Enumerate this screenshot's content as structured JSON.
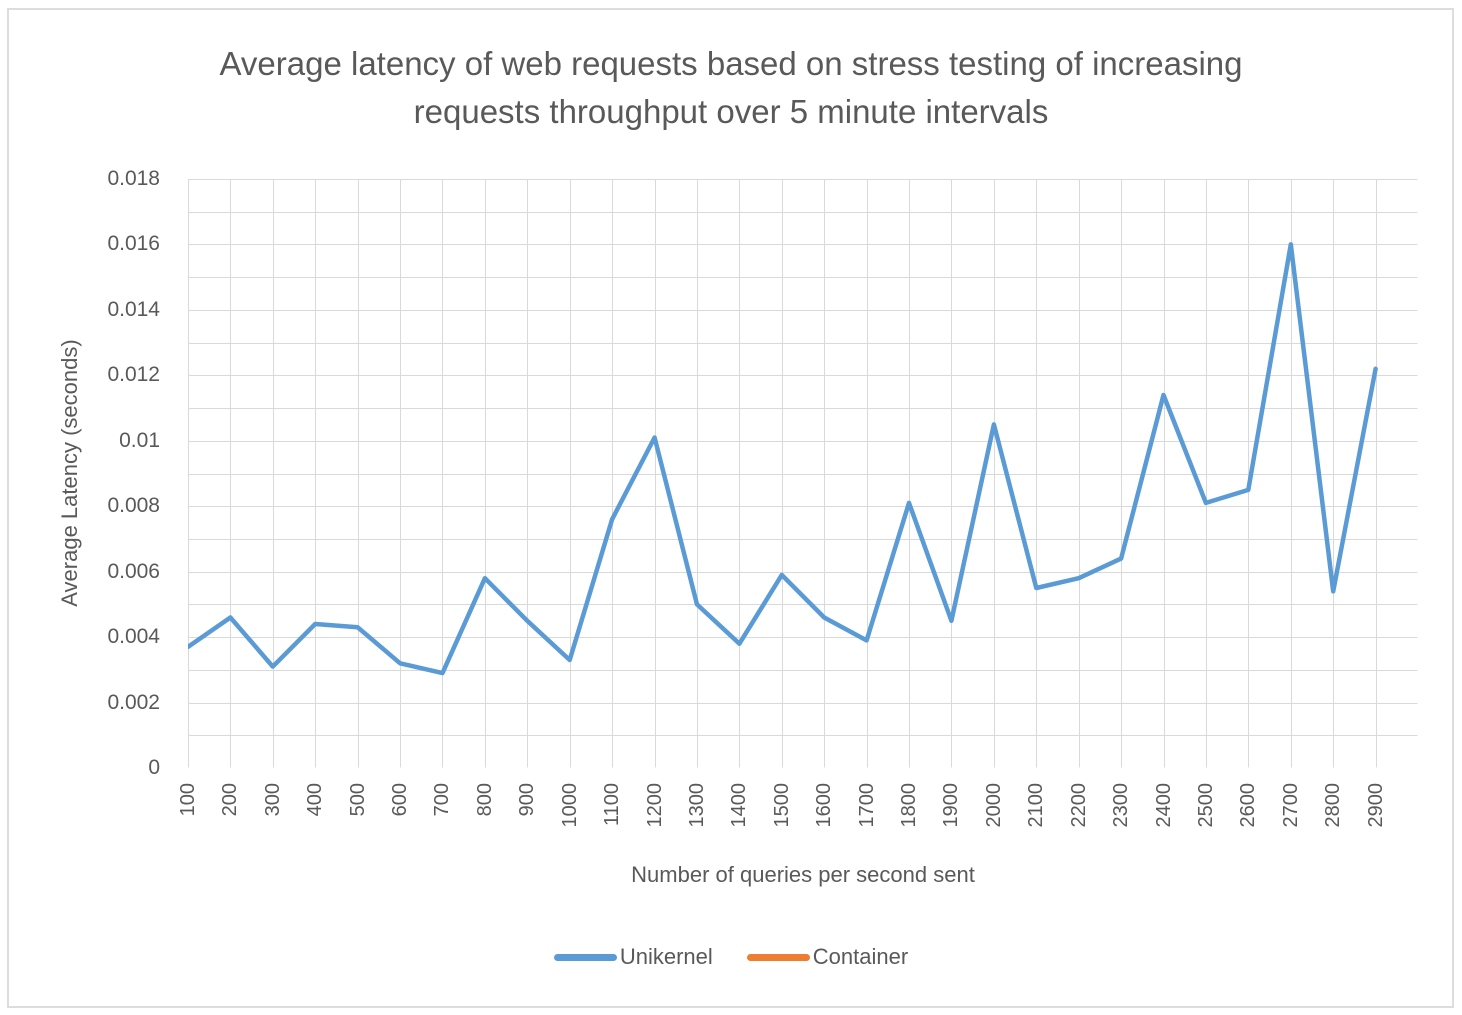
{
  "chart_data": {
    "type": "line",
    "title": "Average latency of web requests based on stress testing of increasing requests throughput over 5 minute intervals",
    "xlabel": "Number of queries per second sent",
    "ylabel": "Average Latency (seconds)",
    "x_categories": [
      "100",
      "200",
      "300",
      "400",
      "500",
      "600",
      "700",
      "800",
      "900",
      "1000",
      "1100",
      "1200",
      "1300",
      "1400",
      "1500",
      "1600",
      "1700",
      "1800",
      "1900",
      "2000",
      "2100",
      "2200",
      "2300",
      "2400",
      "2500",
      "2600",
      "2700",
      "2800",
      "2900"
    ],
    "ylim": [
      0,
      0.018
    ],
    "ytick_step": 0.002,
    "ytick_labels": [
      "0",
      "0.002",
      "0.004",
      "0.006",
      "0.008",
      "0.01",
      "0.012",
      "0.014",
      "0.016",
      "0.018"
    ],
    "grid": true,
    "y_gridline_step": 0.001,
    "x_gridline_every_category": true,
    "legend_position": "bottom",
    "series": [
      {
        "name": "Unikernel",
        "color": "#5B9BD5",
        "values": [
          0.0037,
          0.0046,
          0.0031,
          0.0044,
          0.0043,
          0.0032,
          0.0029,
          0.0058,
          0.0045,
          0.0033,
          0.0076,
          0.0101,
          0.005,
          0.0038,
          0.0059,
          0.0046,
          0.0039,
          0.0081,
          0.0045,
          0.0105,
          0.0055,
          0.0058,
          0.0064,
          0.0114,
          0.0081,
          0.0085,
          0.016,
          0.0054,
          0.0122
        ]
      },
      {
        "name": "Container",
        "color": "#ED7D31",
        "values": []
      }
    ],
    "colors": {
      "text": "#595959",
      "gridline": "#D9D9D9",
      "frame_border": "#DDDDDD"
    }
  }
}
